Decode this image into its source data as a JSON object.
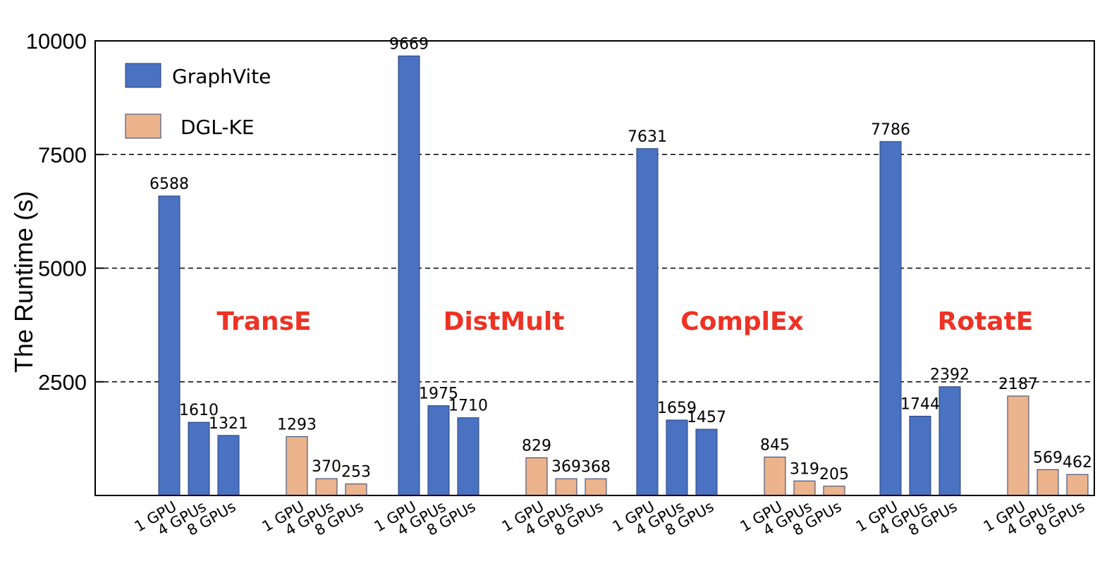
{
  "chart_data": {
    "type": "bar",
    "ylabel": "The Runtime (s)",
    "xlabel": "",
    "ylim": [
      0,
      10000
    ],
    "yticks": [
      2500,
      5000,
      7500,
      10000
    ],
    "grid": "horizontal dashed",
    "legend_position": "top-left",
    "colors": {
      "GraphVite": "#4a72c2",
      "DGL-KE": "#ebb48c",
      "group_title": "#ee3224"
    },
    "series": [
      {
        "name": "GraphVite"
      },
      {
        "name": "DGL-KE"
      }
    ],
    "groups": [
      {
        "title": "TransE",
        "bars": [
          {
            "series": "GraphVite",
            "label": "1 GPU",
            "value": 6588
          },
          {
            "series": "GraphVite",
            "label": "4 GPUs",
            "value": 1610
          },
          {
            "series": "GraphVite",
            "label": "8 GPUs",
            "value": 1321
          },
          {
            "series": "DGL-KE",
            "label": "1 GPU",
            "value": 1293
          },
          {
            "series": "DGL-KE",
            "label": "4 GPUs",
            "value": 370
          },
          {
            "series": "DGL-KE",
            "label": "8 GPUs",
            "value": 253
          }
        ]
      },
      {
        "title": "DistMult",
        "bars": [
          {
            "series": "GraphVite",
            "label": "1 GPU",
            "value": 9669
          },
          {
            "series": "GraphVite",
            "label": "4 GPUs",
            "value": 1975
          },
          {
            "series": "GraphVite",
            "label": "8 GPUs",
            "value": 1710
          },
          {
            "series": "DGL-KE",
            "label": "1 GPU",
            "value": 829
          },
          {
            "series": "DGL-KE",
            "label": "4 GPUs",
            "value": 369
          },
          {
            "series": "DGL-KE",
            "label": "8 GPUs",
            "value": 368
          }
        ]
      },
      {
        "title": "ComplEx",
        "bars": [
          {
            "series": "GraphVite",
            "label": "1 GPU",
            "value": 7631
          },
          {
            "series": "GraphVite",
            "label": "4 GPUs",
            "value": 1659
          },
          {
            "series": "GraphVite",
            "label": "8 GPUs",
            "value": 1457
          },
          {
            "series": "DGL-KE",
            "label": "1 GPU",
            "value": 845
          },
          {
            "series": "DGL-KE",
            "label": "4 GPUs",
            "value": 319
          },
          {
            "series": "DGL-KE",
            "label": "8 GPUs",
            "value": 205
          }
        ]
      },
      {
        "title": "RotatE",
        "bars": [
          {
            "series": "GraphVite",
            "label": "1 GPU",
            "value": 7786
          },
          {
            "series": "GraphVite",
            "label": "4 GPUs",
            "value": 1744
          },
          {
            "series": "GraphVite",
            "label": "8 GPUs",
            "value": 2392
          },
          {
            "series": "DGL-KE",
            "label": "1 GPU",
            "value": 2187
          },
          {
            "series": "DGL-KE",
            "label": "4 GPUs",
            "value": 569
          },
          {
            "series": "DGL-KE",
            "label": "8 GPUs",
            "value": 462
          }
        ]
      }
    ]
  }
}
